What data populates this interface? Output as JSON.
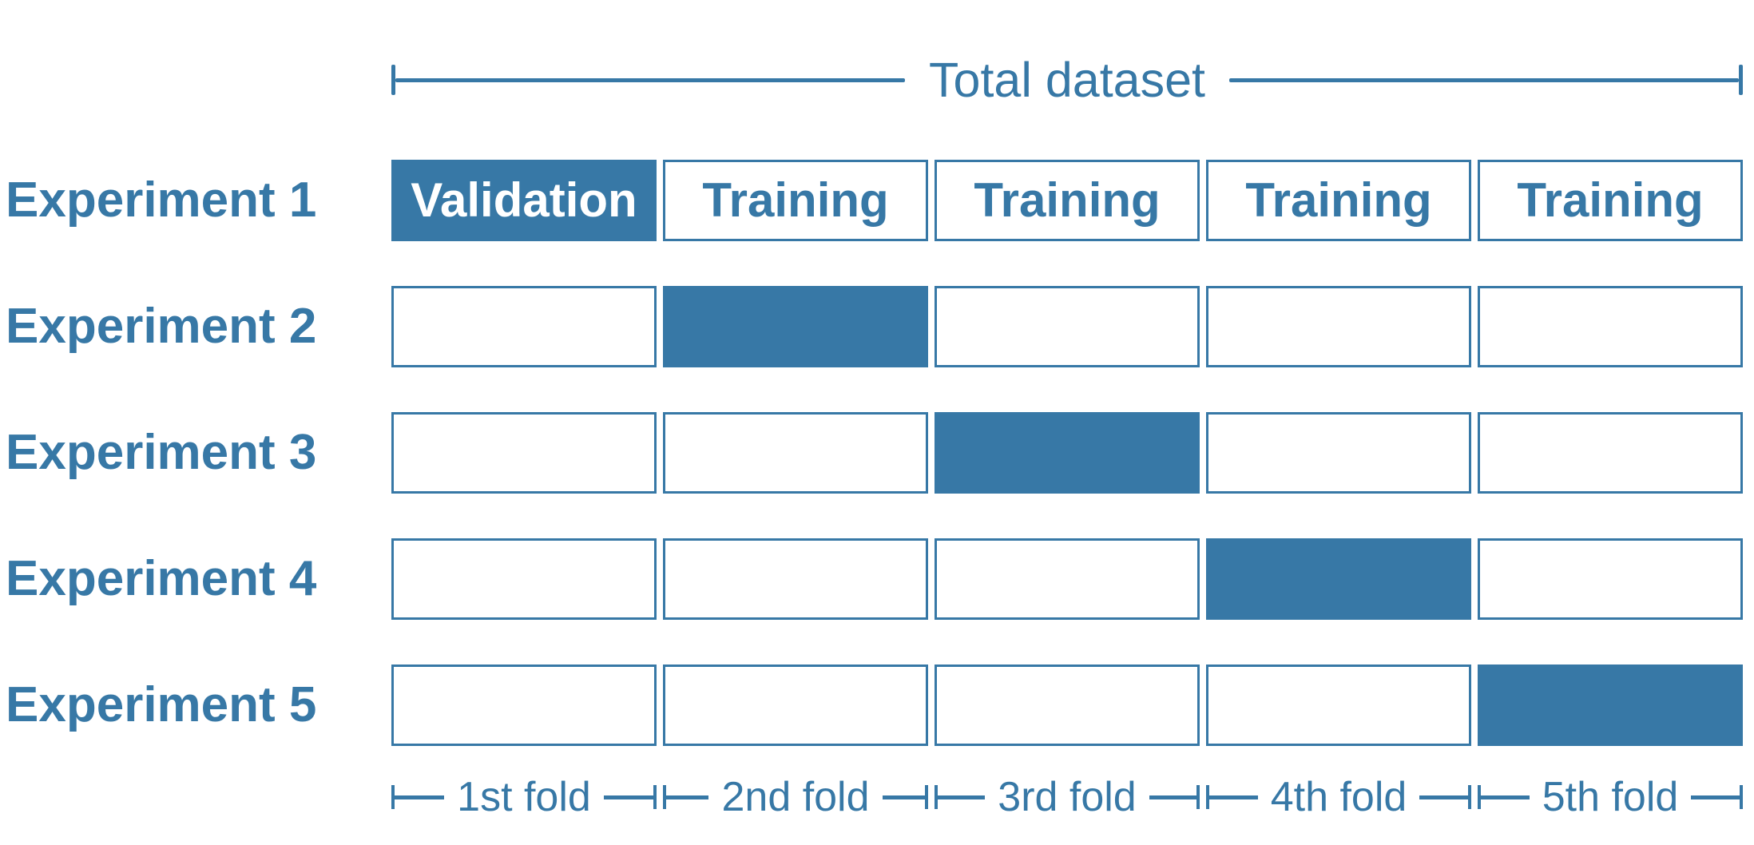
{
  "colors": {
    "accent": "#3778A6",
    "validation_text": "#FFFFFF",
    "background": "#FFFFFF"
  },
  "top_bracket": {
    "label": "Total dataset"
  },
  "experiments": [
    {
      "label": "Experiment 1",
      "cells": [
        {
          "text": "Validation",
          "filled": true
        },
        {
          "text": "Training",
          "filled": false
        },
        {
          "text": "Training",
          "filled": false
        },
        {
          "text": "Training",
          "filled": false
        },
        {
          "text": "Training",
          "filled": false
        }
      ]
    },
    {
      "label": "Experiment 2",
      "cells": [
        {
          "text": "",
          "filled": false
        },
        {
          "text": "",
          "filled": true
        },
        {
          "text": "",
          "filled": false
        },
        {
          "text": "",
          "filled": false
        },
        {
          "text": "",
          "filled": false
        }
      ]
    },
    {
      "label": "Experiment 3",
      "cells": [
        {
          "text": "",
          "filled": false
        },
        {
          "text": "",
          "filled": false
        },
        {
          "text": "",
          "filled": true
        },
        {
          "text": "",
          "filled": false
        },
        {
          "text": "",
          "filled": false
        }
      ]
    },
    {
      "label": "Experiment 4",
      "cells": [
        {
          "text": "",
          "filled": false
        },
        {
          "text": "",
          "filled": false
        },
        {
          "text": "",
          "filled": false
        },
        {
          "text": "",
          "filled": true
        },
        {
          "text": "",
          "filled": false
        }
      ]
    },
    {
      "label": "Experiment 5",
      "cells": [
        {
          "text": "",
          "filled": false
        },
        {
          "text": "",
          "filled": false
        },
        {
          "text": "",
          "filled": false
        },
        {
          "text": "",
          "filled": false
        },
        {
          "text": "",
          "filled": true
        }
      ]
    }
  ],
  "fold_labels": [
    "1st fold",
    "2nd fold",
    "3rd fold",
    "4th fold",
    "5th fold"
  ]
}
